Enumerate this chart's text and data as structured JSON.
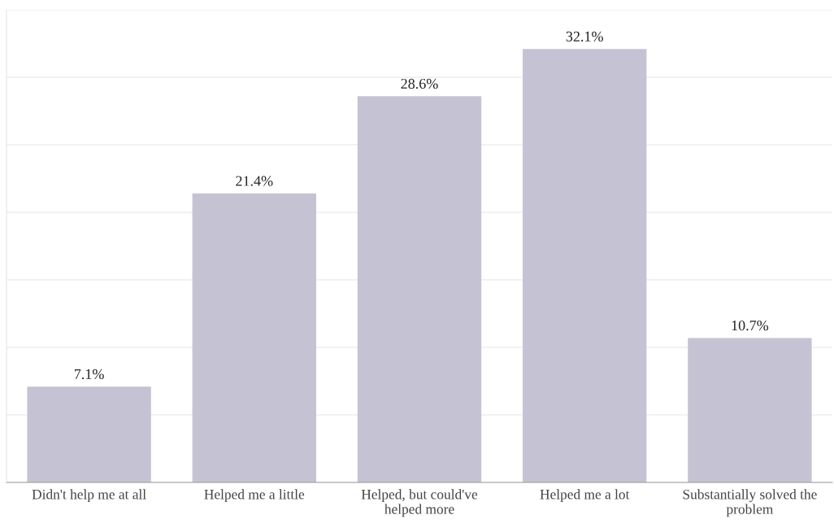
{
  "chart_data": {
    "type": "bar",
    "categories": [
      "Didn't help me at all",
      "Helped me a little",
      "Helped, but could've\nhelped more",
      "Helped me a lot",
      "Substantially solved the\nproblem"
    ],
    "values": [
      7.1,
      21.4,
      28.6,
      32.1,
      10.7
    ],
    "value_labels": [
      "7.1%",
      "21.4%",
      "28.6%",
      "32.1%",
      "10.7%"
    ],
    "color": "#c5c3d3",
    "ylim": [
      0,
      35
    ],
    "yticks": [
      {
        "value": 0,
        "label": null
      },
      {
        "value": 5,
        "label": null
      },
      {
        "value": 10,
        "label": null
      },
      {
        "value": 15,
        "label": null
      },
      {
        "value": 20,
        "label": null
      },
      {
        "value": 25,
        "label": null
      },
      {
        "value": 30,
        "label": null
      },
      {
        "value": 35,
        "label": null
      }
    ],
    "grid": "y",
    "tick_labels": "x"
  }
}
